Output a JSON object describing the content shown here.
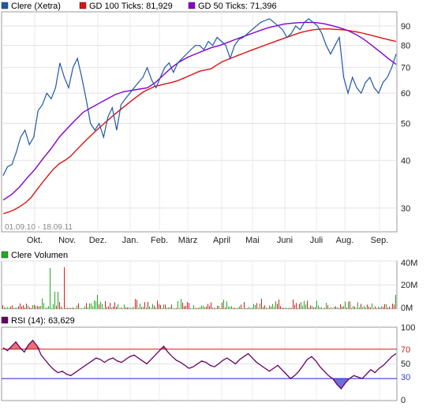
{
  "chart_data": [
    {
      "type": "line",
      "legend": [
        {
          "label": "Clere (Xetra)",
          "color": "#1f57a8"
        },
        {
          "label": "GD 100 Ticks: 81,929",
          "color": "#dd1111"
        },
        {
          "label": "GD 50 Ticks: 71,396",
          "color": "#8800cc"
        }
      ],
      "date_range": "01.09.10 - 18.09.11",
      "x_tick_labels": [
        "Okt.",
        "Nov.",
        "Dez.",
        "Jan.",
        "Feb.",
        "März",
        "April",
        "Mai",
        "Juni",
        "Juli",
        "Aug.",
        "Sep."
      ],
      "y_ticks": [
        30,
        40,
        50,
        60,
        70,
        80,
        90
      ],
      "y_scale": "log",
      "ylim": [
        26,
        98
      ],
      "grid": true,
      "series": [
        {
          "name": "Clere (Xetra)",
          "color": "#1f57a8",
          "values": [
            36.5,
            38.5,
            39,
            42,
            46,
            48,
            44,
            46,
            54,
            56,
            60,
            58,
            62,
            72,
            66,
            62,
            70,
            74,
            66,
            58,
            50,
            48,
            50,
            46,
            52,
            55,
            48,
            56,
            58,
            60,
            62,
            64,
            66,
            70,
            65,
            62,
            66,
            70,
            72,
            68,
            72,
            74,
            76,
            78,
            80,
            80,
            78,
            82,
            80,
            84,
            82,
            80,
            74,
            80,
            83,
            84,
            86,
            88,
            90,
            92,
            93,
            94,
            92,
            90,
            88,
            84,
            86,
            90,
            88,
            92,
            94,
            92,
            90,
            86,
            80,
            76,
            80,
            84,
            66,
            60,
            66,
            62,
            60,
            64,
            66,
            62,
            60,
            64,
            66,
            70,
            76
          ]
        },
        {
          "name": "GD 100 Ticks",
          "color": "#dd1111",
          "values": [
            29,
            29.3,
            29.7,
            30.3,
            31,
            32,
            33.5,
            35,
            36.5,
            38,
            39.2,
            40,
            41,
            42.5,
            44,
            45.5,
            47,
            48.5,
            50,
            51.5,
            53,
            54.5,
            56,
            57.5,
            59,
            60.5,
            61.5,
            62.5,
            63,
            63.5,
            64,
            64.6,
            65.5,
            66.5,
            67.5,
            68.5,
            69,
            69.5,
            71,
            72.5,
            73.5,
            74.5,
            75.5,
            76.5,
            77.5,
            78.5,
            79.5,
            80.5,
            81.5,
            82.5,
            83.5,
            84.5,
            85.5,
            86.5,
            87.2,
            87.8,
            88.2,
            88.4,
            88.4,
            88.2,
            88,
            87.8,
            87.3,
            86.8,
            86.2,
            85.5,
            84.8,
            84,
            83.3,
            82.6,
            82
          ]
        },
        {
          "name": "GD 50 Ticks",
          "color": "#8800cc",
          "values": [
            31.5,
            32.5,
            34,
            36,
            38,
            40.5,
            43,
            46,
            48.5,
            51,
            53.5,
            55,
            56.5,
            58,
            59.5,
            60.5,
            61,
            61.5,
            62,
            64,
            67,
            70,
            72.5,
            74.5,
            76,
            77.5,
            79,
            80,
            81.5,
            83,
            84.5,
            86,
            87.5,
            89,
            90,
            91,
            91.5,
            91.8,
            92,
            91.8,
            91.2,
            90.2,
            89,
            87.5,
            85.5,
            83,
            80,
            77,
            74,
            71.4
          ]
        }
      ]
    },
    {
      "type": "bar",
      "legend": [
        {
          "label": "Clere Volumen",
          "color": "#22aa22"
        }
      ],
      "y_tick_labels": [
        "40M",
        "20M",
        "0M"
      ],
      "ylim": [
        0,
        40
      ]
    },
    {
      "type": "line",
      "legend": [
        {
          "label": "RSI (14): 63,629",
          "color": "#660066"
        }
      ],
      "y_tick_labels": [
        "100",
        "70",
        "50",
        "30",
        "0"
      ],
      "ylim": [
        0,
        100
      ],
      "reference_lines": [
        {
          "value": 70,
          "color": "#dd1111"
        },
        {
          "value": 30,
          "color": "#2222cc"
        }
      ],
      "series": [
        {
          "name": "RSI (14)",
          "color": "#660066",
          "values": [
            72,
            68,
            74,
            80,
            72,
            66,
            76,
            82,
            75,
            62,
            55,
            48,
            42,
            38,
            40,
            36,
            34,
            38,
            42,
            46,
            50,
            54,
            58,
            56,
            52,
            56,
            58,
            54,
            52,
            56,
            60,
            62,
            58,
            54,
            50,
            56,
            62,
            68,
            74,
            66,
            60,
            55,
            52,
            48,
            44,
            46,
            50,
            54,
            52,
            48,
            46,
            50,
            55,
            58,
            54,
            50,
            56,
            60,
            64,
            58,
            52,
            48,
            44,
            40,
            44,
            48,
            42,
            36,
            30,
            34,
            40,
            48,
            56,
            60,
            54,
            46,
            40,
            34,
            30,
            22,
            16,
            24,
            30,
            34,
            32,
            30,
            36,
            42,
            38,
            44,
            48,
            54,
            60,
            64
          ]
        }
      ]
    }
  ]
}
